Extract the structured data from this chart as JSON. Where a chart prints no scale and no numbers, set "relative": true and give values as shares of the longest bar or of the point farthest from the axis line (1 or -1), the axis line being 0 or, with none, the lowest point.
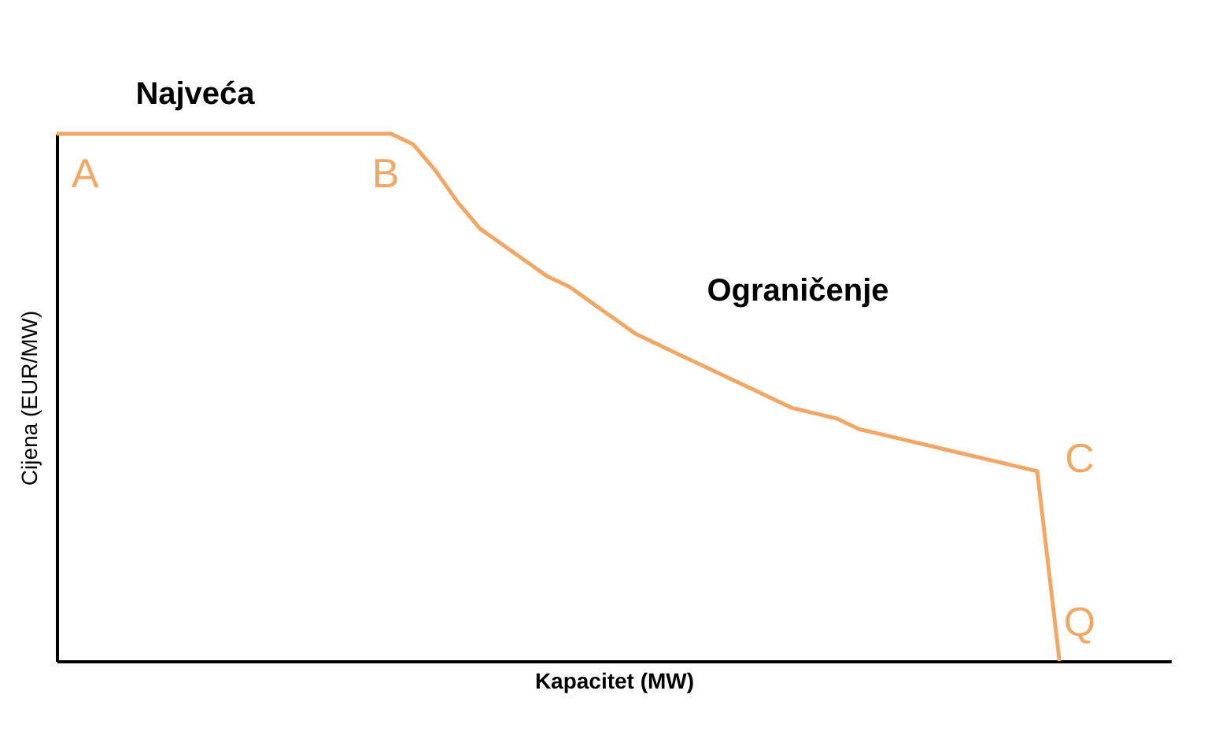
{
  "chart_data": {
    "type": "line",
    "relative": true,
    "xlabel": "Kapacitet (MW)",
    "ylabel": "Cijena (EUR/MW)",
    "categories": [
      null,
      null,
      null,
      null,
      null,
      null,
      null,
      null,
      null,
      null,
      null,
      null,
      null,
      null,
      null,
      null,
      null,
      null,
      null,
      null,
      null,
      null,
      null,
      null,
      null,
      null,
      null,
      null,
      null,
      null,
      null,
      null,
      null,
      null,
      null,
      null,
      null,
      null,
      null,
      null,
      null,
      null,
      null,
      null,
      null,
      null
    ],
    "series": [
      {
        "color": "#f0a868",
        "values": [
          1,
          1,
          1,
          1,
          1,
          1,
          1,
          1,
          1,
          1,
          1,
          1,
          1,
          1,
          1,
          1,
          0.98,
          0.93,
          0.87,
          0.82,
          0.79,
          0.76,
          0.73,
          0.71,
          0.68,
          0.65,
          0.62,
          0.6,
          0.58,
          0.56,
          0.54,
          0.52,
          0.5,
          0.48,
          0.47,
          0.46,
          0.44,
          0.43,
          0.42,
          0.41,
          0.4,
          0.39,
          0.38,
          0.37,
          0.36,
          0
        ]
      }
    ],
    "annotations": [
      "Najveća",
      "Ograničenje",
      "A",
      "B",
      "C",
      "Q"
    ]
  }
}
